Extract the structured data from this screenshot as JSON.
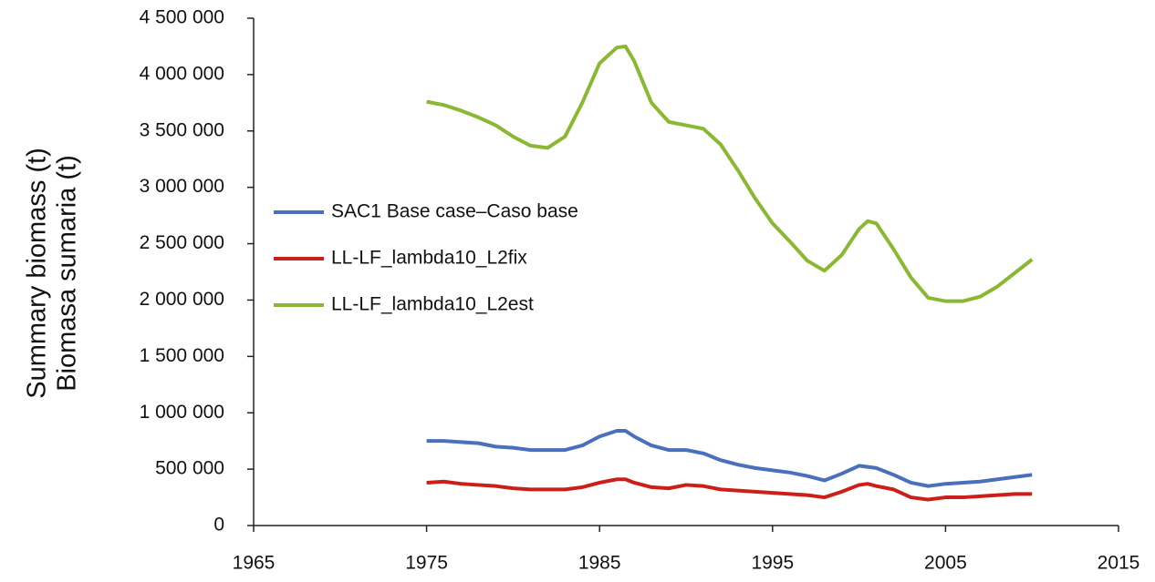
{
  "chart_data": {
    "type": "line",
    "ylabel": [
      "Summary biomass (t)",
      "Biomasa sumaria (t)"
    ],
    "x": [
      1975,
      1976,
      1977,
      1978,
      1979,
      1980,
      1981,
      1982,
      1983,
      1984,
      1985,
      1986,
      1986.5,
      1987,
      1988,
      1989,
      1990,
      1991,
      1992,
      1993,
      1994,
      1995,
      1996,
      1997,
      1998,
      1999,
      2000,
      2000.5,
      2001,
      2002,
      2003,
      2004,
      2005,
      2006,
      2007,
      2008,
      2009,
      2010
    ],
    "series": [
      {
        "name": "SAC1 Base case–Caso base",
        "color": "#4a6fbd",
        "values": [
          750000,
          750000,
          740000,
          730000,
          700000,
          690000,
          670000,
          670000,
          670000,
          710000,
          790000,
          840000,
          840000,
          790000,
          710000,
          670000,
          670000,
          640000,
          580000,
          540000,
          510000,
          490000,
          470000,
          440000,
          400000,
          460000,
          530000,
          520000,
          510000,
          450000,
          380000,
          350000,
          370000,
          380000,
          390000,
          410000,
          430000,
          450000
        ]
      },
      {
        "name": "LL-LF_lambda10_L2fix",
        "color": "#cc1f1a",
        "values": [
          380000,
          390000,
          370000,
          360000,
          350000,
          330000,
          320000,
          320000,
          320000,
          340000,
          380000,
          410000,
          410000,
          380000,
          340000,
          330000,
          360000,
          350000,
          320000,
          310000,
          300000,
          290000,
          280000,
          270000,
          250000,
          300000,
          360000,
          370000,
          350000,
          320000,
          250000,
          230000,
          250000,
          250000,
          260000,
          270000,
          280000,
          280000
        ]
      },
      {
        "name": "LL-LF_lambda10_L2est",
        "color": "#8ab832",
        "values": [
          3760000,
          3730000,
          3680000,
          3620000,
          3550000,
          3450000,
          3370000,
          3350000,
          3450000,
          3750000,
          4100000,
          4240000,
          4250000,
          4120000,
          3750000,
          3580000,
          3550000,
          3520000,
          3380000,
          3150000,
          2900000,
          2680000,
          2520000,
          2350000,
          2260000,
          2400000,
          2630000,
          2700000,
          2680000,
          2450000,
          2200000,
          2020000,
          1990000,
          1990000,
          2030000,
          2120000,
          2240000,
          2360000
        ]
      }
    ],
    "xlim": [
      1965,
      2015
    ],
    "xticks": [
      1965,
      1975,
      1985,
      1995,
      2005,
      2015
    ],
    "ylim": [
      0,
      4500000
    ],
    "yticks": [
      0,
      {
        "value": 500000,
        "label": "500 000"
      },
      {
        "value": 1000000,
        "label": "1 000 000"
      },
      {
        "value": 1500000,
        "label": "1 500 000"
      },
      {
        "value": 2000000,
        "label": "2 000 000"
      },
      {
        "value": 2500000,
        "label": "2 500 000"
      },
      {
        "value": 3000000,
        "label": "3 000 000"
      },
      {
        "value": 3500000,
        "label": "3 500 000"
      },
      {
        "value": 4000000,
        "label": "4 000 000"
      },
      {
        "value": 4500000,
        "label": "4 500 000"
      }
    ],
    "grid": false,
    "legend": "left"
  }
}
